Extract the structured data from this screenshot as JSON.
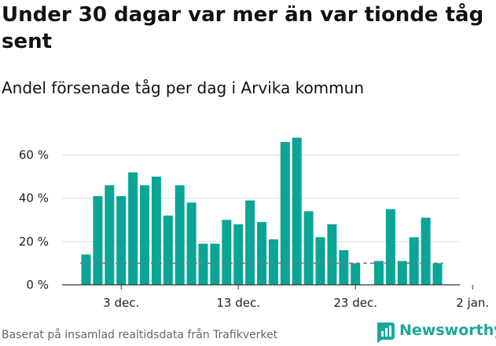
{
  "title": "Under 30 dagar var mer än var tionde tåg sent",
  "subtitle": "Andel försenade tåg per dag i Arvika kommun",
  "source": "Baserat på insamlad realtidsdata från Trafikverket",
  "brand": {
    "name": "Newsworthy",
    "color": "#1aa79b"
  },
  "colors": {
    "bar": "#0aa596",
    "reference": "#777777",
    "grid": "#dddddd"
  },
  "chart_data": {
    "type": "bar",
    "x": [
      "2021-11-30",
      "2021-12-01",
      "2021-12-02",
      "2021-12-03",
      "2021-12-04",
      "2021-12-05",
      "2021-12-06",
      "2021-12-07",
      "2021-12-08",
      "2021-12-09",
      "2021-12-10",
      "2021-12-11",
      "2021-12-12",
      "2021-12-13",
      "2021-12-14",
      "2021-12-15",
      "2021-12-16",
      "2021-12-17",
      "2021-12-18",
      "2021-12-19",
      "2021-12-20",
      "2021-12-21",
      "2021-12-22",
      "2021-12-23",
      "2021-12-24",
      "2021-12-25",
      "2021-12-26",
      "2021-12-27",
      "2021-12-28",
      "2021-12-29",
      "2021-12-30",
      "2021-12-31"
    ],
    "values": [
      14,
      41,
      46,
      41,
      52,
      46,
      50,
      32,
      46,
      38,
      19,
      19,
      30,
      28,
      39,
      29,
      21,
      66,
      68,
      34,
      22,
      28,
      16,
      10,
      null,
      11,
      35,
      11,
      22,
      31,
      10,
      null
    ],
    "reference_line": 10,
    "ylim": [
      0,
      70
    ],
    "yticks": [
      0,
      20,
      40,
      60
    ],
    "ytick_labels": [
      "0 %",
      "20 %",
      "40 %",
      "60 %"
    ],
    "xticks": [
      "2021-12-03",
      "2021-12-13",
      "2021-12-23",
      "2022-01-02"
    ],
    "xtick_labels": [
      "3 dec.",
      "13 dec.",
      "23 dec.",
      "2 jan."
    ],
    "grid": true
  }
}
